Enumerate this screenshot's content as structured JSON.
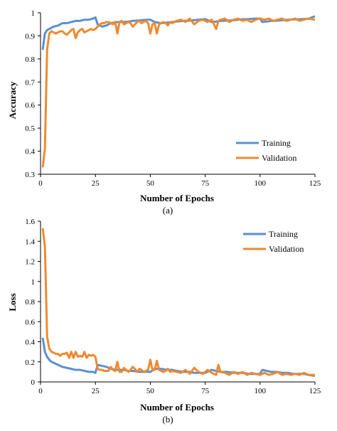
{
  "colors": {
    "training": "#5b8fd0",
    "validation": "#ef8a2f",
    "axis": "#000000"
  },
  "chart_data": [
    {
      "type": "line",
      "caption": "(a)",
      "xlabel": "Number of Epochs",
      "ylabel": "Accuracy",
      "xlim": [
        0,
        125
      ],
      "ylim": [
        0.3,
        1
      ],
      "xticks": [
        "0",
        "25",
        "50",
        "75",
        "100",
        "125"
      ],
      "xtick_values": [
        0,
        25,
        50,
        75,
        100,
        125
      ],
      "yticks": [
        "0.3",
        "0.4",
        "0.5",
        "0.6",
        "0.7",
        "0.8",
        "0.9",
        "1"
      ],
      "ytick_values": [
        0.3,
        0.4,
        0.5,
        0.6,
        0.7,
        0.8,
        0.9,
        1.0
      ],
      "legend": [
        "Training",
        "Validation"
      ],
      "legend_position": "lower-right",
      "grid": false,
      "series": [
        {
          "name": "Training",
          "x": [
            1,
            2,
            3,
            4,
            5,
            6,
            8,
            10,
            12,
            14,
            16,
            18,
            20,
            22,
            24,
            25,
            26,
            28,
            30,
            32,
            35,
            38,
            40,
            42,
            45,
            48,
            50,
            52,
            55,
            58,
            60,
            62,
            65,
            68,
            70,
            72,
            75,
            78,
            80,
            82,
            85,
            88,
            90,
            92,
            95,
            98,
            100,
            101,
            103,
            105,
            108,
            110,
            113,
            115,
            118,
            120,
            122,
            125
          ],
          "y": [
            0.84,
            0.91,
            0.925,
            0.93,
            0.935,
            0.94,
            0.945,
            0.955,
            0.955,
            0.96,
            0.965,
            0.965,
            0.97,
            0.97,
            0.975,
            0.98,
            0.95,
            0.94,
            0.945,
            0.955,
            0.96,
            0.96,
            0.962,
            0.965,
            0.967,
            0.97,
            0.97,
            0.96,
            0.955,
            0.958,
            0.96,
            0.962,
            0.965,
            0.966,
            0.968,
            0.97,
            0.973,
            0.96,
            0.962,
            0.965,
            0.966,
            0.968,
            0.97,
            0.972,
            0.973,
            0.975,
            0.975,
            0.96,
            0.962,
            0.965,
            0.966,
            0.968,
            0.97,
            0.971,
            0.972,
            0.973,
            0.974,
            0.985
          ]
        },
        {
          "name": "Validation",
          "x": [
            1,
            2,
            3,
            4,
            5,
            6,
            7,
            8,
            9,
            10,
            11,
            12,
            13,
            14,
            15,
            16,
            17,
            18,
            19,
            20,
            21,
            22,
            23,
            24,
            25,
            26,
            27,
            28,
            29,
            30,
            31,
            32,
            33,
            34,
            35,
            36,
            37,
            38,
            39,
            40,
            41,
            42,
            43,
            44,
            45,
            46,
            47,
            48,
            49,
            50,
            51,
            52,
            53,
            54,
            55,
            56,
            57,
            58,
            59,
            60,
            62,
            64,
            66,
            68,
            70,
            72,
            74,
            76,
            78,
            80,
            81,
            82,
            84,
            86,
            88,
            90,
            92,
            94,
            96,
            98,
            100,
            102,
            104,
            106,
            108,
            110,
            112,
            114,
            116,
            118,
            120,
            122,
            125
          ],
          "y": [
            0.33,
            0.41,
            0.84,
            0.91,
            0.92,
            0.915,
            0.91,
            0.915,
            0.92,
            0.92,
            0.91,
            0.905,
            0.915,
            0.925,
            0.93,
            0.89,
            0.915,
            0.925,
            0.93,
            0.915,
            0.92,
            0.925,
            0.93,
            0.925,
            0.93,
            0.94,
            0.95,
            0.955,
            0.955,
            0.96,
            0.96,
            0.955,
            0.95,
            0.96,
            0.91,
            0.96,
            0.965,
            0.95,
            0.955,
            0.96,
            0.955,
            0.94,
            0.95,
            0.96,
            0.965,
            0.955,
            0.96,
            0.965,
            0.955,
            0.91,
            0.95,
            0.955,
            0.91,
            0.95,
            0.955,
            0.96,
            0.955,
            0.945,
            0.96,
            0.955,
            0.965,
            0.97,
            0.96,
            0.975,
            0.95,
            0.965,
            0.97,
            0.96,
            0.97,
            0.93,
            0.965,
            0.97,
            0.975,
            0.96,
            0.97,
            0.975,
            0.965,
            0.97,
            0.96,
            0.97,
            0.975,
            0.97,
            0.975,
            0.965,
            0.97,
            0.975,
            0.965,
            0.97,
            0.975,
            0.965,
            0.97,
            0.975,
            0.97
          ]
        }
      ]
    },
    {
      "type": "line",
      "caption": "(b)",
      "xlabel": "Number of Epochs",
      "ylabel": "Loss",
      "xlim": [
        0,
        125
      ],
      "ylim": [
        0,
        1.6
      ],
      "xticks": [
        "0",
        "25",
        "50",
        "75",
        "100",
        "125"
      ],
      "xtick_values": [
        0,
        25,
        50,
        75,
        100,
        125
      ],
      "yticks": [
        "0",
        "0.2",
        "0.4",
        "0.6",
        "0.8",
        "1",
        "1.2",
        "1.4",
        "1.6"
      ],
      "ytick_values": [
        0,
        0.2,
        0.4,
        0.6,
        0.8,
        1.0,
        1.2,
        1.4,
        1.6
      ],
      "legend": [
        "Training",
        "Validation"
      ],
      "legend_position": "top-right",
      "grid": false,
      "series": [
        {
          "name": "Training",
          "x": [
            1,
            2,
            3,
            4,
            5,
            6,
            8,
            10,
            12,
            14,
            16,
            18,
            20,
            22,
            24,
            25,
            26,
            28,
            30,
            32,
            35,
            38,
            40,
            42,
            45,
            48,
            50,
            52,
            55,
            58,
            60,
            62,
            65,
            68,
            70,
            72,
            75,
            78,
            80,
            82,
            85,
            88,
            90,
            92,
            95,
            98,
            100,
            101,
            103,
            105,
            108,
            110,
            113,
            115,
            118,
            120,
            122,
            125
          ],
          "y": [
            0.44,
            0.3,
            0.25,
            0.22,
            0.2,
            0.19,
            0.17,
            0.15,
            0.14,
            0.13,
            0.12,
            0.12,
            0.11,
            0.1,
            0.1,
            0.09,
            0.17,
            0.16,
            0.15,
            0.13,
            0.12,
            0.12,
            0.11,
            0.11,
            0.1,
            0.1,
            0.1,
            0.13,
            0.13,
            0.12,
            0.12,
            0.11,
            0.1,
            0.1,
            0.09,
            0.09,
            0.09,
            0.12,
            0.11,
            0.1,
            0.1,
            0.09,
            0.09,
            0.09,
            0.08,
            0.08,
            0.08,
            0.12,
            0.11,
            0.1,
            0.1,
            0.09,
            0.09,
            0.08,
            0.08,
            0.08,
            0.07,
            0.06
          ]
        },
        {
          "name": "Validation",
          "x": [
            1,
            2,
            3,
            4,
            5,
            6,
            7,
            8,
            9,
            10,
            11,
            12,
            13,
            14,
            15,
            16,
            17,
            18,
            19,
            20,
            21,
            22,
            23,
            24,
            25,
            26,
            27,
            28,
            29,
            30,
            31,
            32,
            33,
            34,
            35,
            36,
            37,
            38,
            39,
            40,
            41,
            42,
            43,
            44,
            45,
            46,
            47,
            48,
            49,
            50,
            51,
            52,
            53,
            54,
            55,
            56,
            57,
            58,
            59,
            60,
            62,
            64,
            66,
            68,
            70,
            72,
            74,
            76,
            78,
            80,
            81,
            82,
            84,
            86,
            88,
            90,
            92,
            94,
            96,
            98,
            100,
            102,
            104,
            106,
            108,
            110,
            112,
            114,
            116,
            118,
            120,
            122,
            125
          ],
          "y": [
            1.53,
            1.35,
            0.45,
            0.33,
            0.3,
            0.29,
            0.28,
            0.28,
            0.26,
            0.28,
            0.28,
            0.29,
            0.24,
            0.3,
            0.24,
            0.3,
            0.25,
            0.26,
            0.25,
            0.3,
            0.24,
            0.27,
            0.26,
            0.27,
            0.25,
            0.13,
            0.12,
            0.12,
            0.11,
            0.11,
            0.11,
            0.15,
            0.12,
            0.11,
            0.2,
            0.1,
            0.1,
            0.14,
            0.12,
            0.1,
            0.12,
            0.15,
            0.13,
            0.1,
            0.13,
            0.12,
            0.1,
            0.11,
            0.12,
            0.22,
            0.12,
            0.12,
            0.21,
            0.12,
            0.11,
            0.1,
            0.11,
            0.13,
            0.1,
            0.11,
            0.1,
            0.09,
            0.12,
            0.08,
            0.14,
            0.1,
            0.08,
            0.12,
            0.09,
            0.07,
            0.17,
            0.1,
            0.09,
            0.07,
            0.1,
            0.08,
            0.1,
            0.07,
            0.09,
            0.08,
            0.07,
            0.09,
            0.07,
            0.08,
            0.1,
            0.07,
            0.08,
            0.07,
            0.08,
            0.07,
            0.09,
            0.07,
            0.07
          ]
        }
      ]
    }
  ]
}
